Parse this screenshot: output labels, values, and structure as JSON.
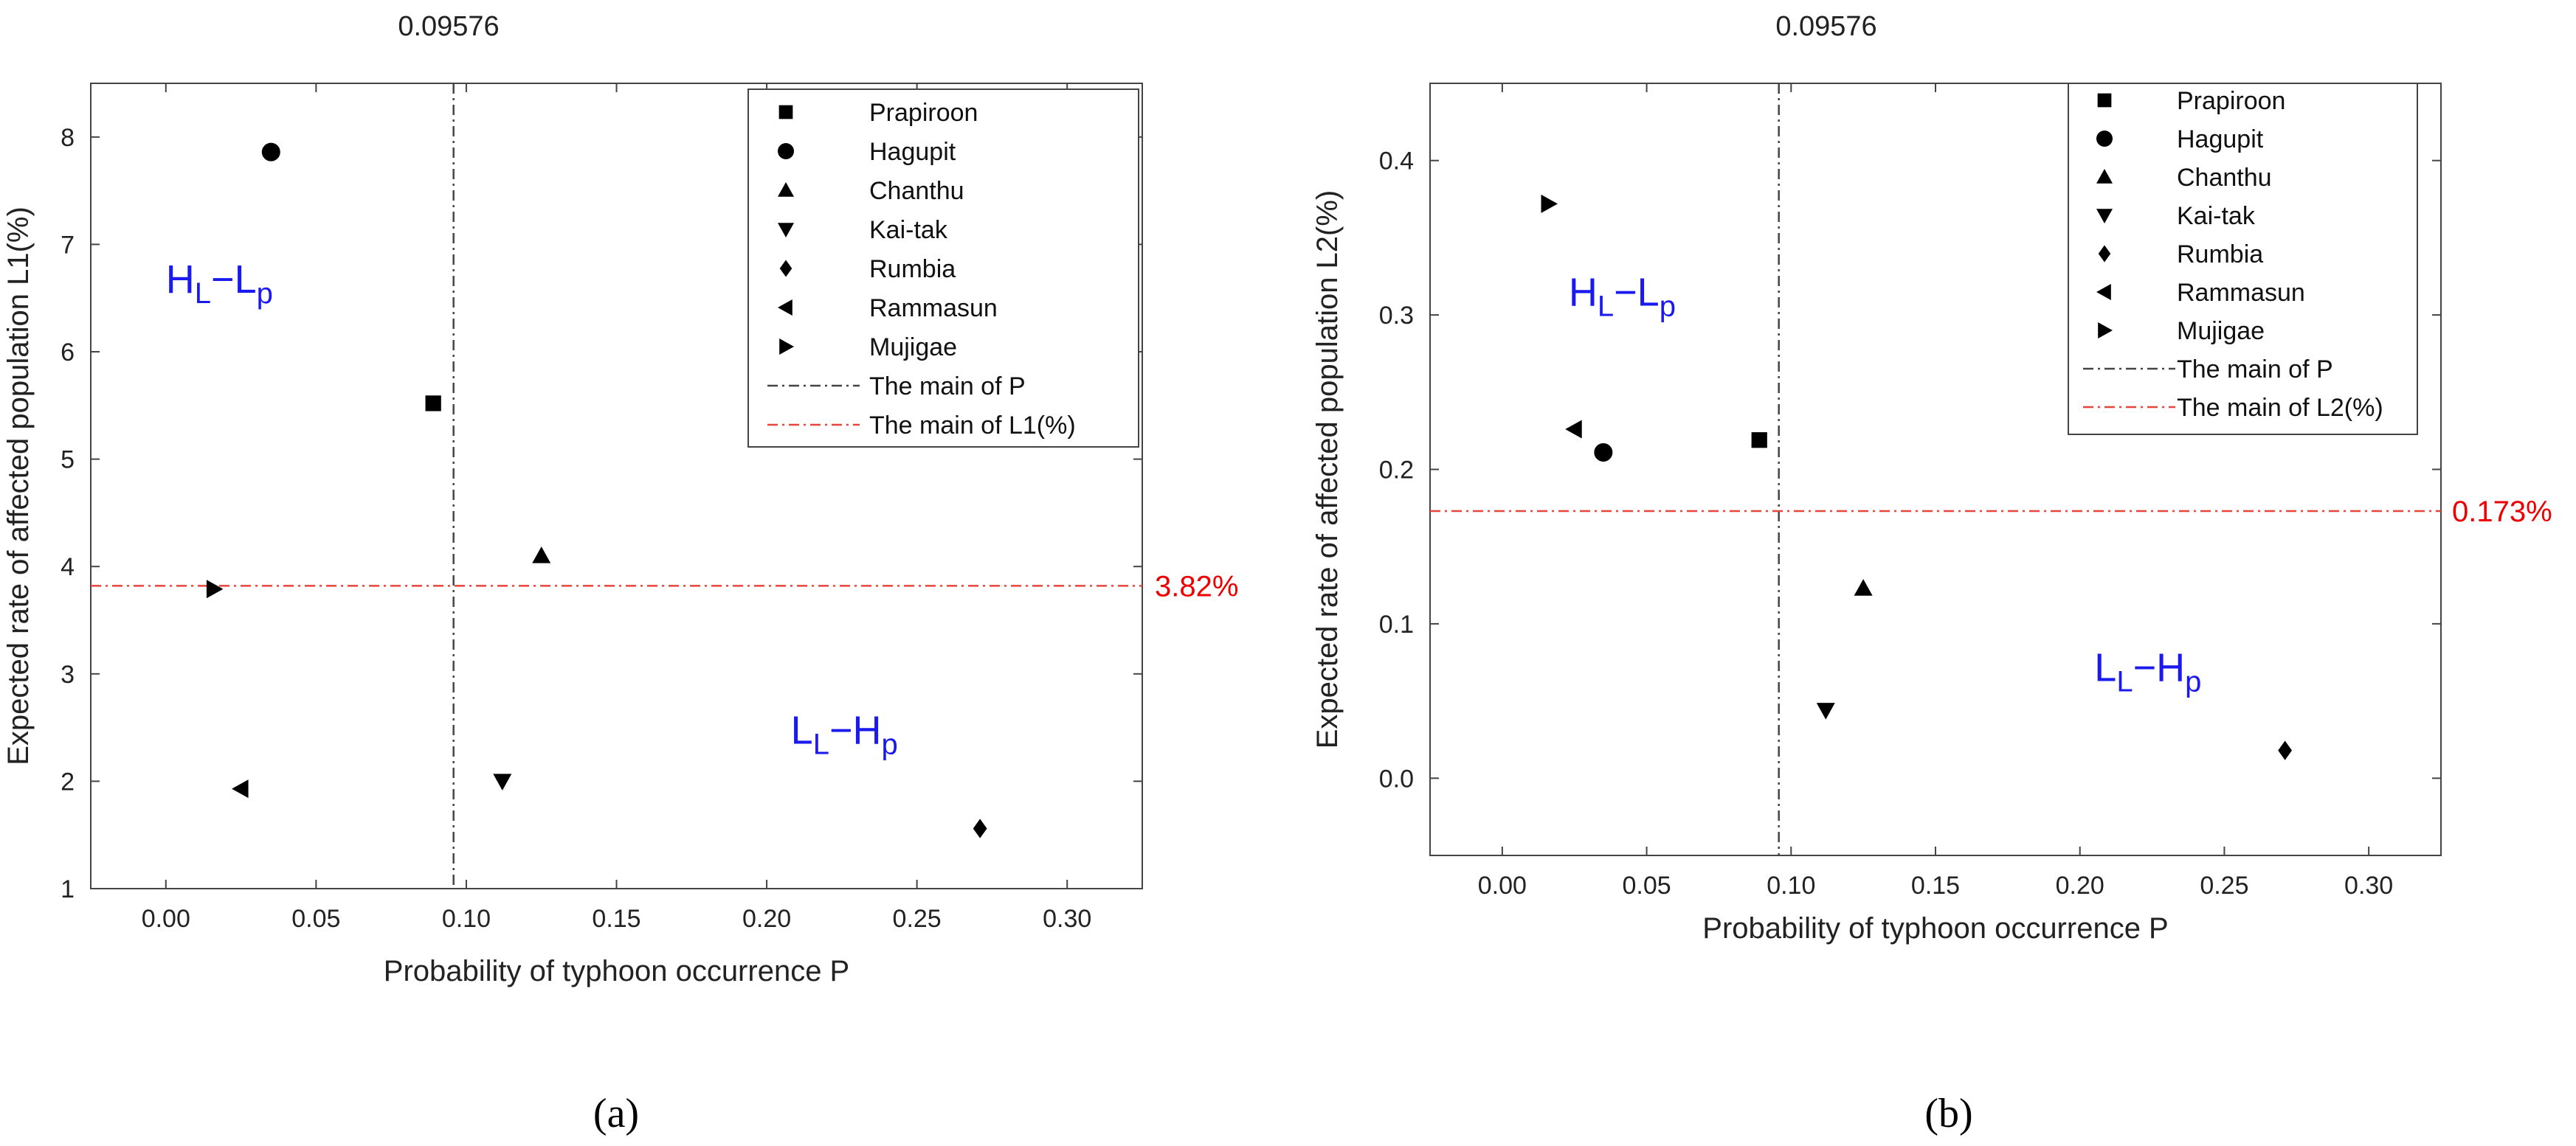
{
  "colors": {
    "frame": "#444444",
    "marker": "#000000",
    "mean_p_line": "#444444",
    "mean_l_line": "#e8453c",
    "mean_l_label": "#ee0000",
    "region": "#1a1aee"
  },
  "legend_entries": [
    {
      "label": "Prapiroon",
      "marker": "square"
    },
    {
      "label": "Hagupit",
      "marker": "circle"
    },
    {
      "label": "Chanthu",
      "marker": "triangle-up"
    },
    {
      "label": "Kai-tak",
      "marker": "triangle-down"
    },
    {
      "label": "Rumbia",
      "marker": "diamond"
    },
    {
      "label": "Rammasun",
      "marker": "triangle-left"
    },
    {
      "label": "Mujigae",
      "marker": "triangle-right"
    }
  ],
  "chart_data": [
    {
      "type": "scatter",
      "panel_label": "(a)",
      "xlabel": "Probability of typhoon occurrence P",
      "ylabel": "Expected rate of affected population L1(%)",
      "xlim": [
        -0.025,
        0.325
      ],
      "ylim": [
        1,
        8.5
      ],
      "xticks": [
        0.0,
        0.05,
        0.1,
        0.15,
        0.2,
        0.25,
        0.3
      ],
      "xtick_labels": [
        "0.00",
        "0.05",
        "0.10",
        "0.15",
        "0.20",
        "0.25",
        "0.30"
      ],
      "yticks": [
        1,
        2,
        3,
        4,
        5,
        6,
        7,
        8
      ],
      "ytick_labels": [
        "1",
        "2",
        "3",
        "4",
        "5",
        "6",
        "7",
        "8"
      ],
      "series": [
        {
          "name": "Prapiroon",
          "marker": "square",
          "x": 0.089,
          "y": 5.52
        },
        {
          "name": "Hagupit",
          "marker": "circle",
          "x": 0.035,
          "y": 7.86
        },
        {
          "name": "Chanthu",
          "marker": "triangle-up",
          "x": 0.125,
          "y": 4.1
        },
        {
          "name": "Kai-tak",
          "marker": "triangle-down",
          "x": 0.112,
          "y": 2.0
        },
        {
          "name": "Rumbia",
          "marker": "diamond",
          "x": 0.271,
          "y": 1.56
        },
        {
          "name": "Rammasun",
          "marker": "triangle-left",
          "x": 0.025,
          "y": 1.93
        },
        {
          "name": "Mujigae",
          "marker": "triangle-right",
          "x": 0.016,
          "y": 3.79
        }
      ],
      "mean_p": 0.09576,
      "mean_p_label": "0.09576",
      "mean_l": 3.82,
      "mean_l_label": "3.82%",
      "legend_mean_p": "The main of P",
      "legend_mean_l": "The main of L1(%)",
      "legend_position": "top-right",
      "regions": [
        {
          "main": "H",
          "main_sub": "L",
          "sep": "−",
          "other": "L",
          "other_sub": "p",
          "x": 0.0,
          "y": 6.55
        },
        {
          "main": "L",
          "main_sub": "L",
          "sep": "−",
          "other": "H",
          "other_sub": "p",
          "x": 0.208,
          "y": 2.35
        }
      ]
    },
    {
      "type": "scatter",
      "panel_label": "(b)",
      "xlabel": "Probability of typhoon occurrence P",
      "ylabel": "Expected rate of affected population L2(%)",
      "xlim": [
        -0.025,
        0.325
      ],
      "ylim": [
        -0.05,
        0.45
      ],
      "xticks": [
        0.0,
        0.05,
        0.1,
        0.15,
        0.2,
        0.25,
        0.3
      ],
      "xtick_labels": [
        "0.00",
        "0.05",
        "0.10",
        "0.15",
        "0.20",
        "0.25",
        "0.30"
      ],
      "yticks": [
        0.0,
        0.1,
        0.2,
        0.3,
        0.4
      ],
      "ytick_labels": [
        "0.0",
        "0.1",
        "0.2",
        "0.3",
        "0.4"
      ],
      "series": [
        {
          "name": "Prapiroon",
          "marker": "square",
          "x": 0.089,
          "y": 0.219
        },
        {
          "name": "Hagupit",
          "marker": "circle",
          "x": 0.035,
          "y": 0.211
        },
        {
          "name": "Chanthu",
          "marker": "triangle-up",
          "x": 0.125,
          "y": 0.123
        },
        {
          "name": "Kai-tak",
          "marker": "triangle-down",
          "x": 0.112,
          "y": 0.044
        },
        {
          "name": "Rumbia",
          "marker": "diamond",
          "x": 0.271,
          "y": 0.018
        },
        {
          "name": "Rammasun",
          "marker": "triangle-left",
          "x": 0.025,
          "y": 0.226
        },
        {
          "name": "Mujigae",
          "marker": "triangle-right",
          "x": 0.016,
          "y": 0.372
        }
      ],
      "mean_p": 0.09576,
      "mean_p_label": "0.09576",
      "mean_l": 0.173,
      "mean_l_label": "0.173%",
      "legend_mean_p": "The main of P",
      "legend_mean_l": "The main of L2(%)",
      "legend_position": "top-right",
      "regions": [
        {
          "main": "H",
          "main_sub": "L",
          "sep": "−",
          "other": "L",
          "other_sub": "p",
          "x": 0.023,
          "y": 0.306
        },
        {
          "main": "L",
          "main_sub": "L",
          "sep": "−",
          "other": "H",
          "other_sub": "p",
          "x": 0.205,
          "y": 0.063
        }
      ]
    }
  ]
}
